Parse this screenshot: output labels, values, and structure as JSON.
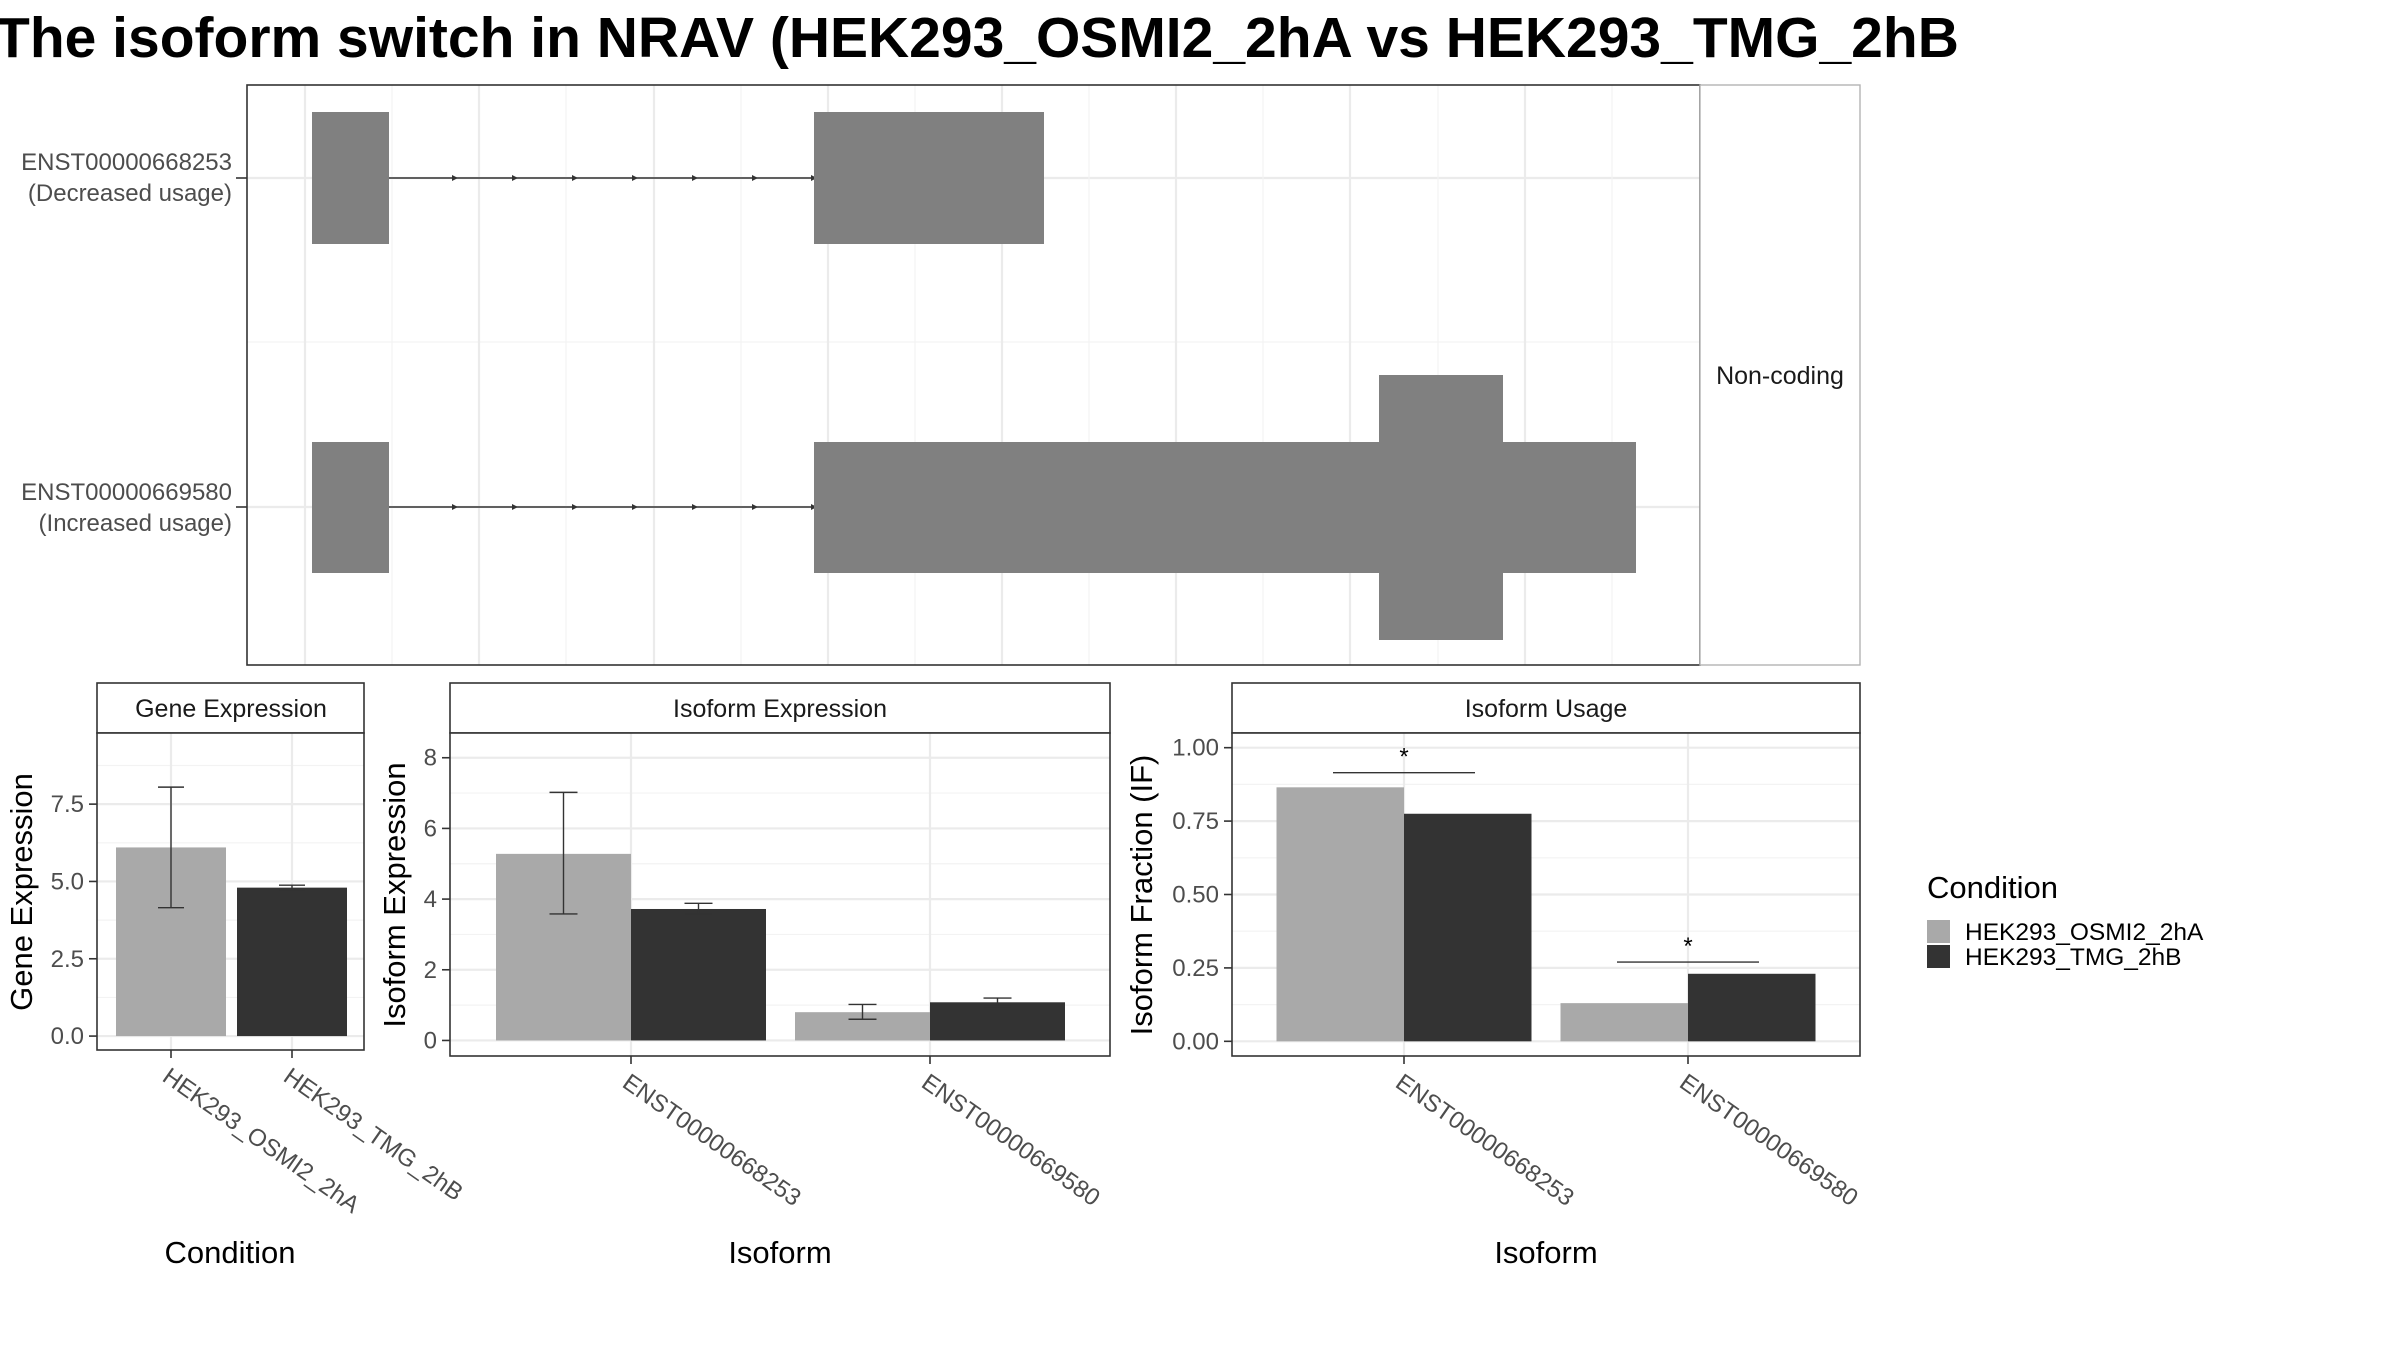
{
  "title": "The isoform switch in NRAV (HEK293_OSMI2_2hA vs HEK293_TMG_2hB",
  "colors": {
    "condition_a": "#a9a9a9",
    "condition_b": "#333333",
    "exon": "#808080",
    "intron_line": "#333333"
  },
  "structure_panel": {
    "facet_label": "Non-coding",
    "transcripts": [
      {
        "id": "ENST00000668253",
        "label_line1": "ENST00000668253",
        "label_line2": "(Decreased usage)"
      },
      {
        "id": "ENST00000669580",
        "label_line1": "ENST00000669580",
        "label_line2": "(Increased usage)"
      }
    ]
  },
  "legend": {
    "title": "Condition",
    "items": [
      {
        "label": "HEK293_OSMI2_2hA",
        "color": "#a9a9a9"
      },
      {
        "label": "HEK293_TMG_2hB",
        "color": "#333333"
      }
    ]
  },
  "chart_data": [
    {
      "type": "bar",
      "strip": "Gene Expression",
      "xlabel": "Condition",
      "ylabel": "Gene Expression",
      "categories": [
        "HEK293_OSMI2_2hA",
        "HEK293_TMG_2hB"
      ],
      "values": [
        6.1,
        4.8
      ],
      "error_low": [
        4.15,
        4.72
      ],
      "error_high": [
        8.05,
        4.88
      ],
      "colors": [
        "#a9a9a9",
        "#333333"
      ],
      "ylim": [
        -0.45,
        9.8
      ],
      "yticks": [
        0.0,
        2.5,
        5.0,
        7.5
      ],
      "ytick_labels": [
        "0.0",
        "2.5",
        "5.0",
        "7.5"
      ]
    },
    {
      "type": "bar",
      "strip": "Isoform Expression",
      "xlabel": "Isoform",
      "ylabel": "Isoform Expression",
      "categories": [
        "ENST00000668253",
        "ENST00000669580"
      ],
      "series": [
        {
          "name": "HEK293_OSMI2_2hA",
          "values": [
            5.28,
            0.8
          ],
          "error_low": [
            3.58,
            0.6
          ],
          "error_high": [
            7.02,
            1.02
          ]
        },
        {
          "name": "HEK293_TMG_2hB",
          "values": [
            3.72,
            1.08
          ],
          "error_low": [
            3.58,
            0.96
          ],
          "error_high": [
            3.88,
            1.2
          ]
        }
      ],
      "ylim": [
        -0.44,
        8.7
      ],
      "yticks": [
        0,
        2,
        4,
        6,
        8
      ],
      "ytick_labels": [
        "0",
        "2",
        "4",
        "6",
        "8"
      ]
    },
    {
      "type": "bar",
      "strip": "Isoform Usage",
      "xlabel": "Isoform",
      "ylabel": "Isoform Fraction (IF)",
      "categories": [
        "ENST00000668253",
        "ENST00000669580"
      ],
      "series": [
        {
          "name": "HEK293_OSMI2_2hA",
          "values": [
            0.865,
            0.13
          ]
        },
        {
          "name": "HEK293_TMG_2hB",
          "values": [
            0.775,
            0.23
          ]
        }
      ],
      "significance": [
        {
          "category": "ENST00000668253",
          "label": "*",
          "y": 0.915
        },
        {
          "category": "ENST00000669580",
          "label": "*",
          "y": 0.27
        }
      ],
      "ylim": [
        -0.05,
        1.05
      ],
      "yticks": [
        0.0,
        0.25,
        0.5,
        0.75,
        1.0
      ],
      "ytick_labels": [
        "0.00",
        "0.25",
        "0.50",
        "0.75",
        "1.00"
      ]
    }
  ]
}
